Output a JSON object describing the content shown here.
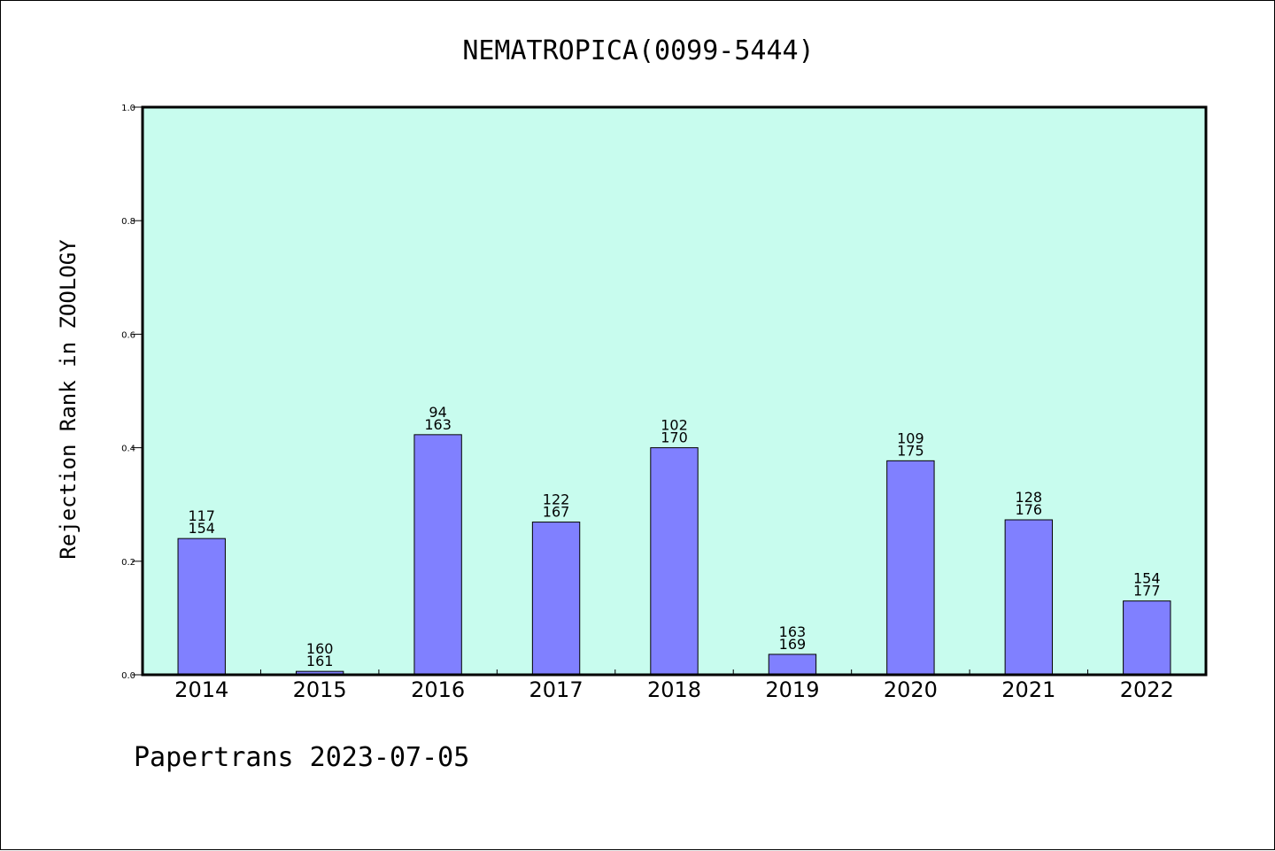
{
  "footer": "Papertrans 2023-07-05",
  "colors": {
    "plot_background": "#c8fcee",
    "bar_fill": "#8080ff",
    "bar_stroke": "#000000",
    "axis": "#000000"
  },
  "chart_data": {
    "type": "bar",
    "title": "NEMATROPICA(0099-5444)",
    "xlabel": "",
    "ylabel": "Rejection Rank in ZOOLOGY",
    "ylim": [
      0,
      1.0
    ],
    "yticks": [
      "0.0",
      "0.2",
      "0.4",
      "0.6",
      "0.8",
      "1.0"
    ],
    "grid": false,
    "categories": [
      "2014",
      "2015",
      "2016",
      "2017",
      "2018",
      "2019",
      "2020",
      "2021",
      "2022"
    ],
    "values": [
      0.24,
      0.006,
      0.423,
      0.269,
      0.4,
      0.036,
      0.377,
      0.273,
      0.13
    ],
    "labels_top": [
      "117",
      "160",
      "94",
      "122",
      "102",
      "163",
      "109",
      "128",
      "154"
    ],
    "labels_bottom": [
      "154",
      "161",
      "163",
      "167",
      "170",
      "169",
      "175",
      "176",
      "177"
    ]
  }
}
